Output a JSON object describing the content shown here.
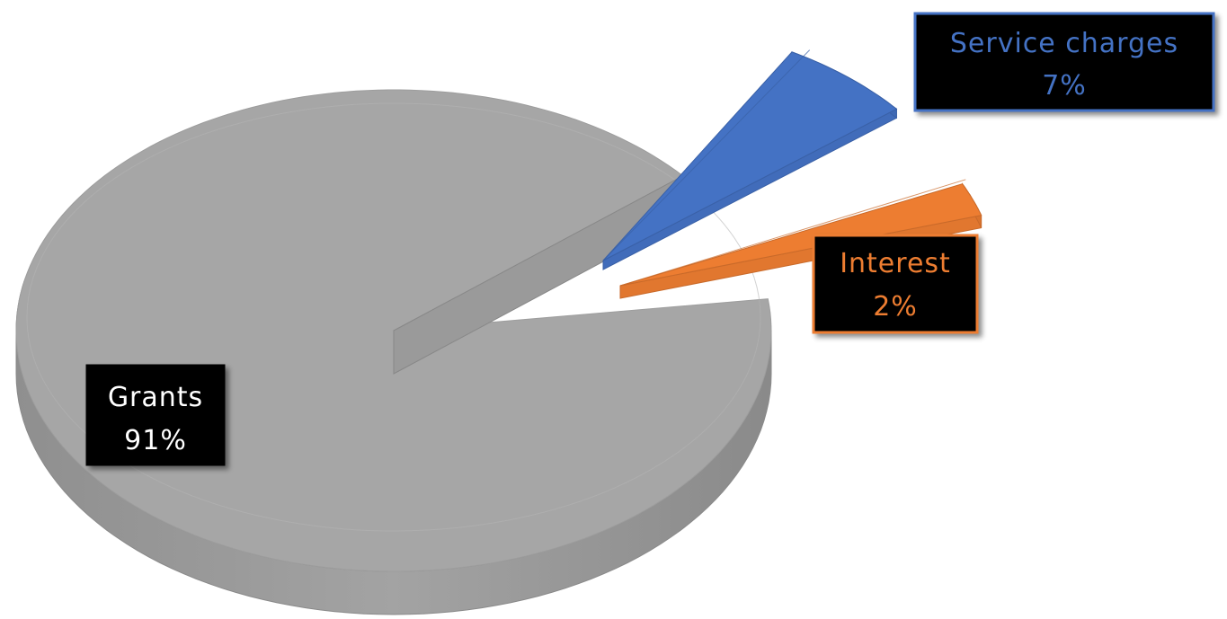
{
  "chart_data": {
    "type": "pie",
    "style": "3d-exploded",
    "legend": "none",
    "title": "",
    "slices": [
      {
        "label": "Grants",
        "value": 91,
        "display": "91%",
        "color": "#a6a6a6"
      },
      {
        "label": "Service charges",
        "value": 7,
        "display": "7%",
        "color": "#4472c4"
      },
      {
        "label": "Interest",
        "value": 2,
        "display": "2%",
        "color": "#ed7d31"
      }
    ]
  }
}
